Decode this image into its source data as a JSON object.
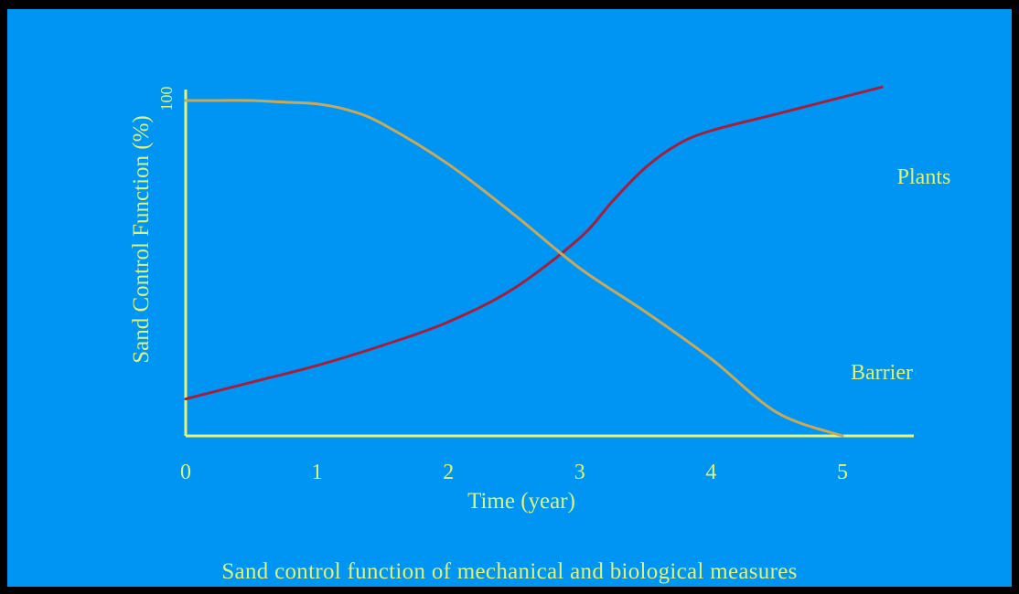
{
  "caption": "Sand control function of mechanical and biological measures",
  "colors": {
    "background": "#0095f2",
    "frame": "#000000",
    "axis": "#e8f27a",
    "text": "#ddf27a",
    "plants_line": "#a3203c",
    "barrier_line": "#c8a85a"
  },
  "chart_data": {
    "type": "line",
    "title": "",
    "xlabel": "Time (year)",
    "ylabel": "Sand Control Function (%)",
    "xlim": [
      0,
      5.6
    ],
    "ylim": [
      0,
      100
    ],
    "xticks": [
      0,
      1,
      2,
      3,
      4,
      5
    ],
    "yticks": [
      100
    ],
    "grid": false,
    "series": [
      {
        "name": "Plants",
        "x": [
          0,
          0.5,
          1,
          1.5,
          2,
          2.5,
          3,
          3.25,
          3.5,
          3.75,
          4,
          4.5,
          5,
          5.3
        ],
        "y": [
          11,
          16,
          21,
          27,
          34,
          44,
          59,
          70,
          80,
          87,
          91,
          96,
          101,
          104
        ]
      },
      {
        "name": "Barrier",
        "x": [
          0,
          0.25,
          0.5,
          0.75,
          1,
          1.25,
          1.5,
          2,
          2.5,
          3,
          3.5,
          4,
          4.5,
          5
        ],
        "y": [
          100,
          100,
          100,
          99.5,
          99,
          97,
          93,
          81,
          66,
          50,
          37,
          23,
          7,
          0
        ]
      }
    ]
  }
}
